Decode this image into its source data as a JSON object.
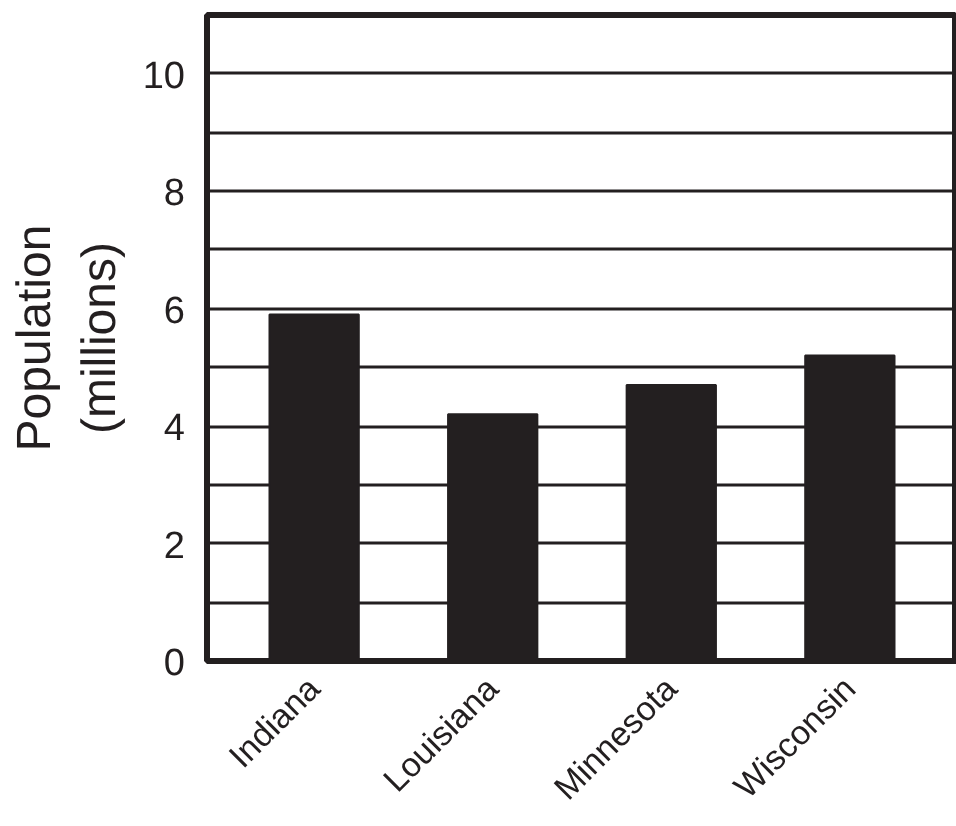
{
  "chart_data": {
    "type": "bar",
    "ylabel": "Population\n(millions)",
    "categories": [
      "Indiana",
      "Louisiana",
      "Minnesota",
      "Wisconsin"
    ],
    "values": [
      5.9,
      4.2,
      4.7,
      5.2
    ],
    "color": "#231f20",
    "ylim": [
      0,
      11
    ],
    "yticks": [
      0,
      {
        "value": 1,
        "label": null
      },
      2,
      {
        "value": 3,
        "label": null
      },
      4,
      {
        "value": 5,
        "label": null
      },
      6,
      {
        "value": 7,
        "label": null
      },
      8,
      {
        "value": 9,
        "label": null
      },
      10
    ],
    "grid": "y"
  }
}
